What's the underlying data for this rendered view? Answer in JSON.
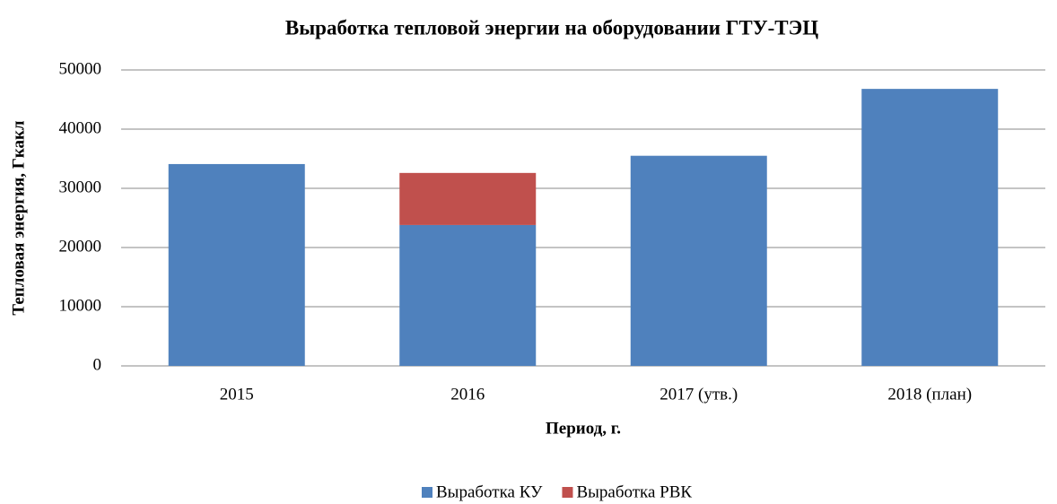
{
  "chart_data": {
    "type": "stacked_bar",
    "title": "Выработка тепловой энергии на оборудовании ГТУ-ТЭЦ",
    "x_label": "Период, г.",
    "y_label": "Тепловая энергия, Гкакл",
    "categories": [
      "2015",
      "2016",
      "2017 (утв.)",
      "2018 (план)"
    ],
    "series": [
      {
        "name": "Выработка КУ",
        "color": "#4f81bd",
        "values": [
          34100,
          23800,
          35500,
          46800
        ]
      },
      {
        "name": "Выработка РВК",
        "color": "#c0504d",
        "values": [
          0,
          8800,
          0,
          0
        ]
      }
    ],
    "ylim": [
      0,
      50000
    ],
    "yticks": [
      0,
      10000,
      20000,
      30000,
      40000,
      50000
    ],
    "grid": true,
    "legend": "bottom"
  }
}
